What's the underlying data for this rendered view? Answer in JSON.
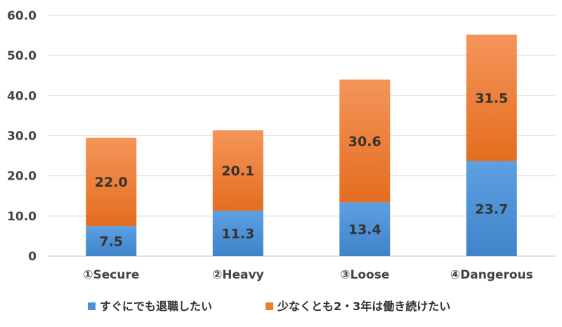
{
  "chart_data": {
    "type": "bar",
    "stacked": true,
    "categories": [
      "①Secure",
      "②Heavy",
      "③Loose",
      "④Dangerous"
    ],
    "series": [
      {
        "name": "すぐにでも退職したい",
        "values": [
          7.5,
          11.3,
          13.4,
          23.7
        ],
        "color": "#4e92d6"
      },
      {
        "name": "少なくとも2・3年は働き続けたい",
        "values": [
          22.0,
          20.1,
          30.6,
          31.5
        ],
        "color": "#ed7d31"
      }
    ],
    "ylim": [
      0,
      60
    ],
    "yticks": [
      "0",
      "10.0",
      "20.0",
      "30.0",
      "40.0",
      "50.0",
      "60.0"
    ],
    "grid": true,
    "legend": "bottom",
    "data_labels": [
      [
        "7.5",
        "11.3",
        "13.4",
        "23.7"
      ],
      [
        "22.0",
        "20.1",
        "30.6",
        "31.5"
      ]
    ]
  }
}
